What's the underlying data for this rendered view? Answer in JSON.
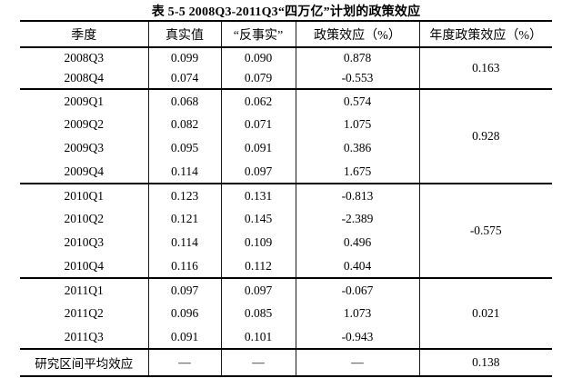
{
  "title": "表 5-5 2008Q3-2011Q3“四万亿”计划的政策效应",
  "table": {
    "headers": [
      "季度",
      "真实值",
      "“反事实”",
      "政策效应（%）",
      "年度政策效应（%）"
    ],
    "groups": [
      {
        "annual": "0.163",
        "rows": [
          [
            "2008Q3",
            "0.099",
            "0.090",
            "0.878"
          ],
          [
            "2008Q4",
            "0.074",
            "0.079",
            "-0.553"
          ]
        ]
      },
      {
        "annual": "0.928",
        "rows": [
          [
            "2009Q1",
            "0.068",
            "0.062",
            "0.574"
          ],
          [
            "2009Q2",
            "0.082",
            "0.071",
            "1.075"
          ],
          [
            "2009Q3",
            "0.095",
            "0.091",
            "0.386"
          ],
          [
            "2009Q4",
            "0.114",
            "0.097",
            "1.675"
          ]
        ]
      },
      {
        "annual": "-0.575",
        "rows": [
          [
            "2010Q1",
            "0.123",
            "0.131",
            "-0.813"
          ],
          [
            "2010Q2",
            "0.121",
            "0.145",
            "-2.389"
          ],
          [
            "2010Q3",
            "0.114",
            "0.109",
            "0.496"
          ],
          [
            "2010Q4",
            "0.116",
            "0.112",
            "0.404"
          ]
        ]
      },
      {
        "annual": "0.021",
        "rows": [
          [
            "2011Q1",
            "0.097",
            "0.097",
            "-0.067"
          ],
          [
            "2011Q2",
            "0.096",
            "0.085",
            "1.073"
          ],
          [
            "2011Q3",
            "0.091",
            "0.101",
            "-0.943"
          ]
        ]
      }
    ],
    "footer": {
      "label": "研究区间平均效应",
      "dash": "—",
      "annual": "0.138"
    }
  },
  "colors": {
    "background": "#ffffff",
    "text": "#000000",
    "rule": "#000000"
  }
}
